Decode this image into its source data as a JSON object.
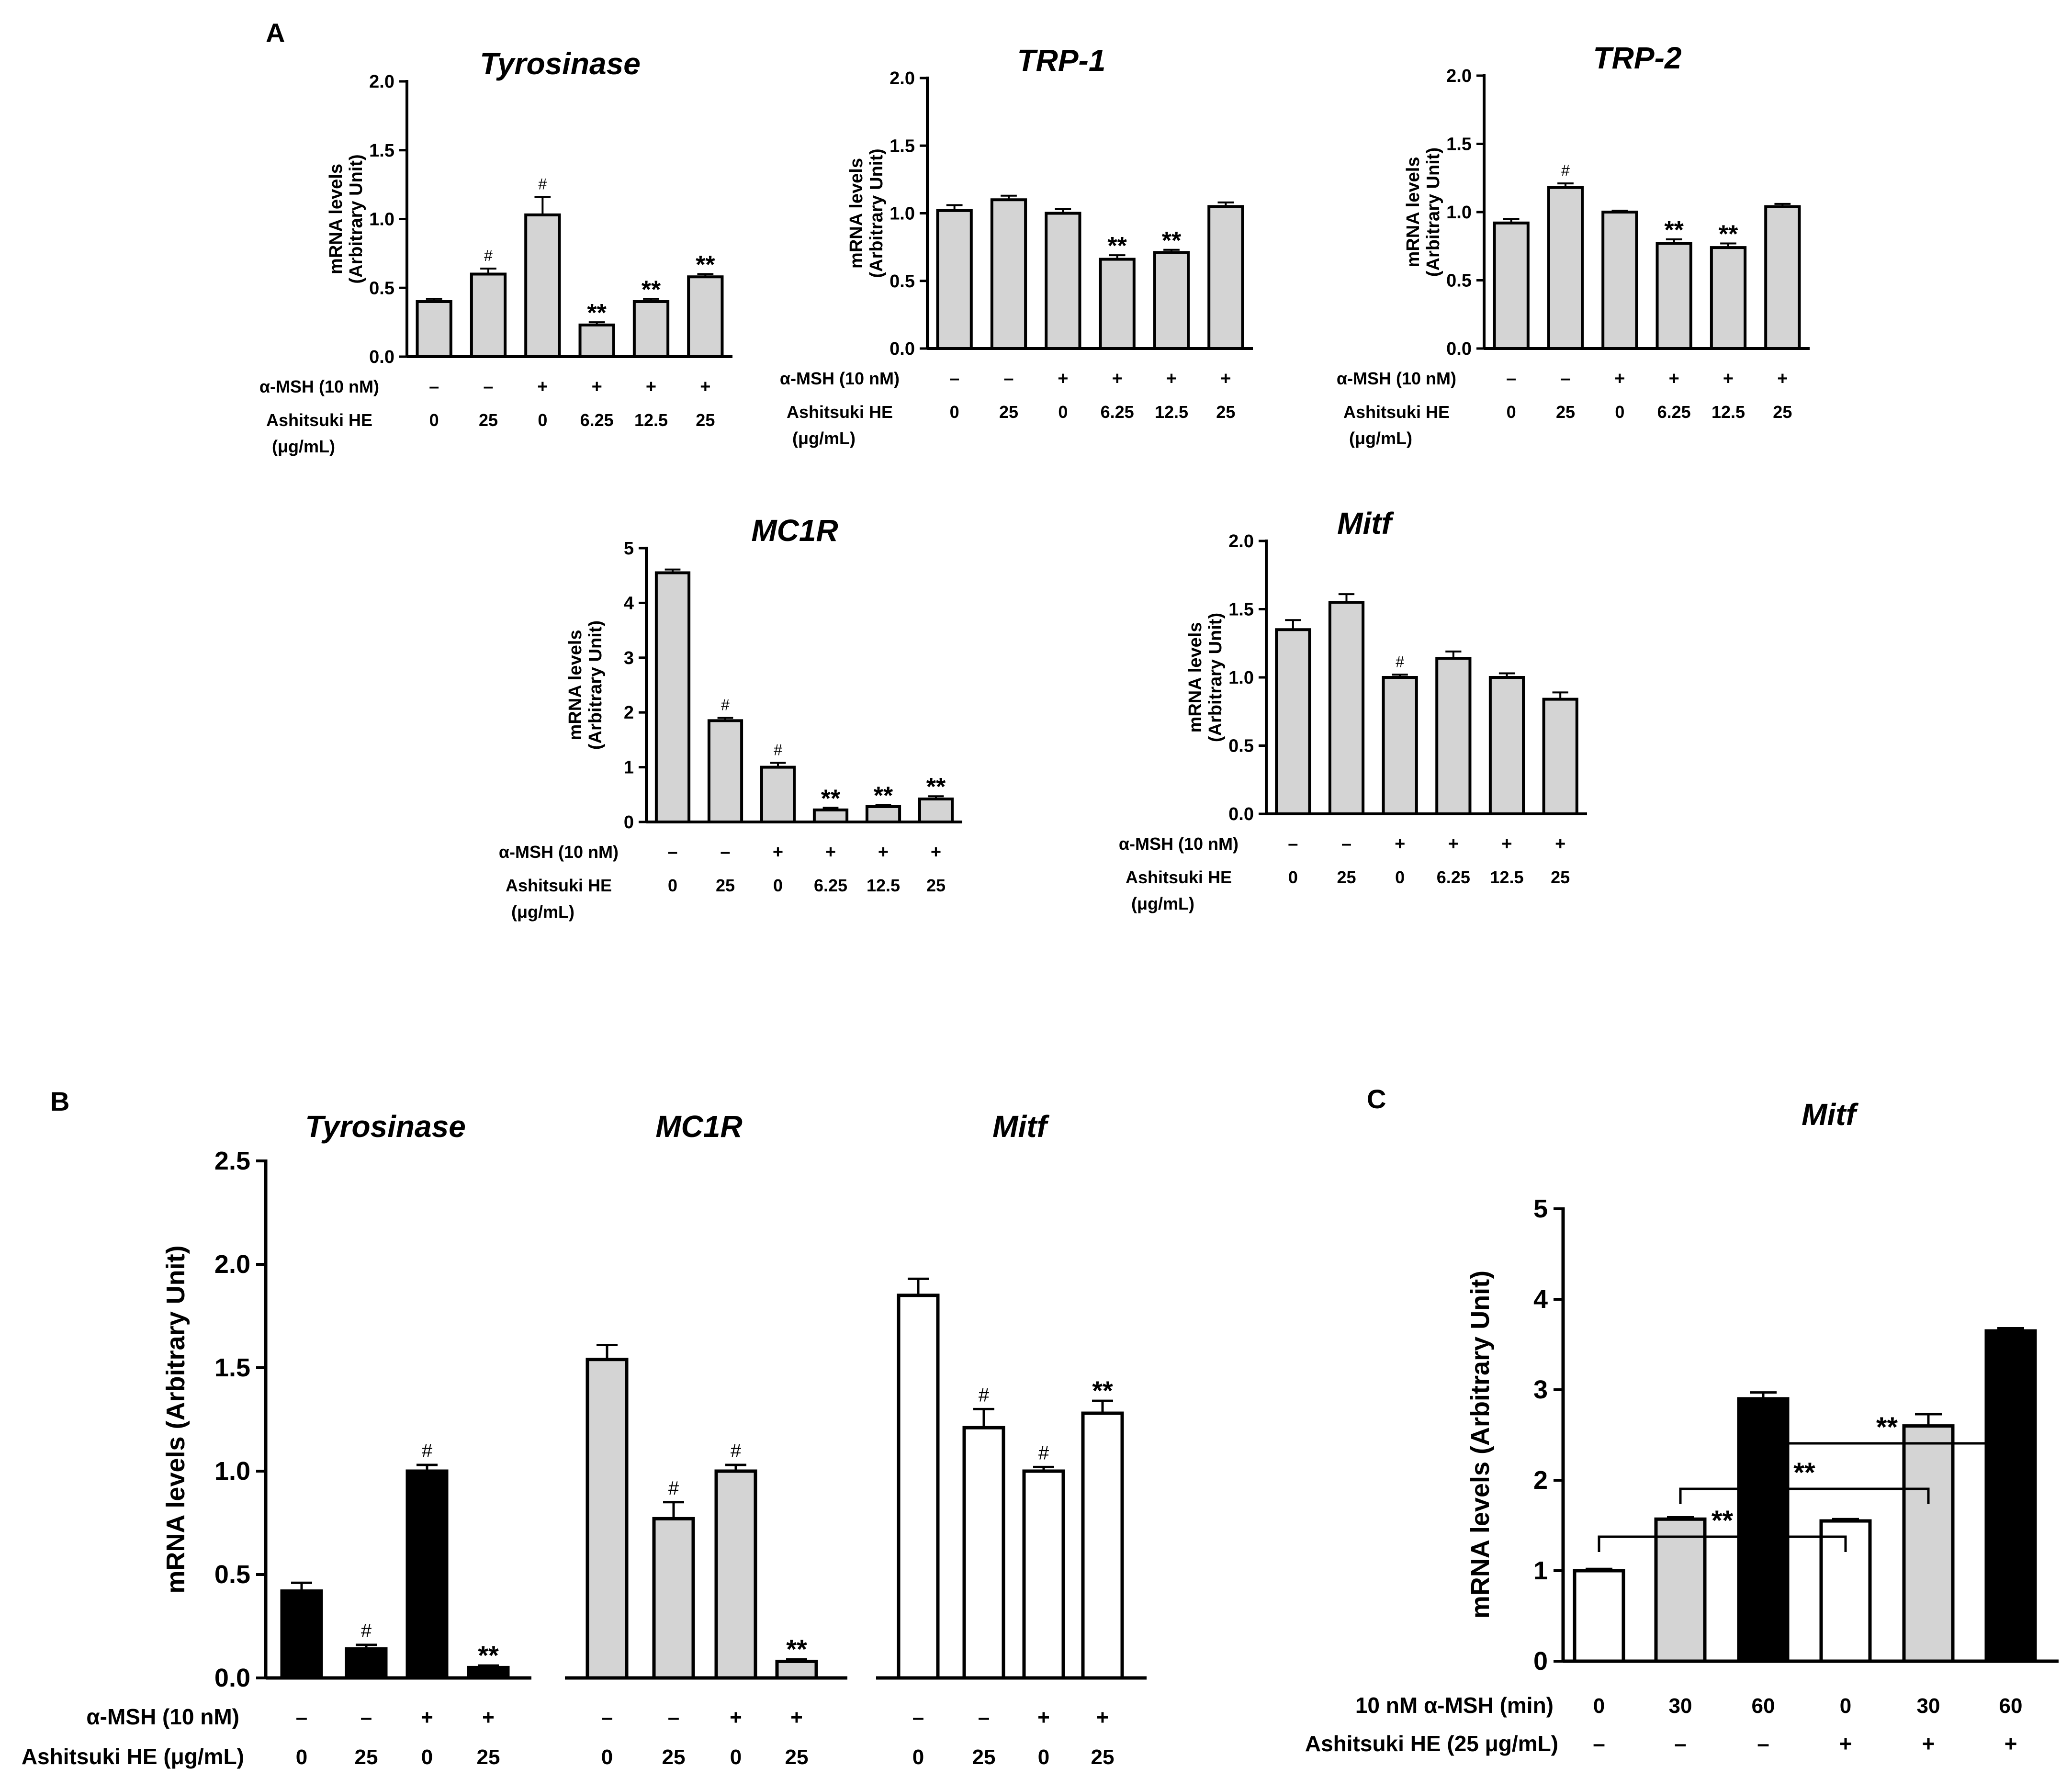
{
  "panel_labels": {
    "A": "A",
    "B": "B",
    "C": "C"
  },
  "colors": {
    "bar_gray": "#d4d4d4",
    "bar_black": "#000000",
    "bar_white": "#ffffff",
    "ink": "#000000"
  },
  "chart_data": [
    {
      "type": "bar",
      "panel": "A",
      "title": "Tyrosinase",
      "ylabel_lines": [
        "mRNA levels",
        "(Arbitrary Unit)"
      ],
      "ylim": [
        0,
        2.0
      ],
      "yticks": [
        "0.0",
        "0.5",
        "1.0",
        "1.5",
        "2.0"
      ],
      "values": [
        0.4,
        0.6,
        1.03,
        0.23,
        0.4,
        0.58
      ],
      "errors": [
        0.02,
        0.04,
        0.13,
        0.02,
        0.02,
        0.02
      ],
      "annotations": [
        "",
        "#",
        "#",
        "**",
        "**",
        "**"
      ],
      "row_labels": [
        {
          "label": "α-MSH (10 nM)",
          "values": [
            "–",
            "–",
            "+",
            "+",
            "+",
            "+"
          ]
        },
        {
          "label": "Ashitsuki HE",
          "sublabel": "(μg/mL)",
          "values": [
            "0",
            "25",
            "0",
            "6.25",
            "12.5",
            "25"
          ]
        }
      ]
    },
    {
      "type": "bar",
      "panel": "A",
      "title": "TRP-1",
      "ylabel_lines": [
        "mRNA levels",
        "(Arbitrary Unit)"
      ],
      "ylim": [
        0,
        2.0
      ],
      "yticks": [
        "0.0",
        "0.5",
        "1.0",
        "1.5",
        "2.0"
      ],
      "values": [
        1.02,
        1.1,
        1.0,
        0.66,
        0.71,
        1.05
      ],
      "errors": [
        0.04,
        0.03,
        0.03,
        0.03,
        0.02,
        0.03
      ],
      "annotations": [
        "",
        "",
        "",
        "**",
        "**",
        ""
      ],
      "row_labels": [
        {
          "label": "α-MSH (10 nM)",
          "values": [
            "–",
            "–",
            "+",
            "+",
            "+",
            "+"
          ]
        },
        {
          "label": "Ashitsuki HE",
          "sublabel": "(μg/mL)",
          "values": [
            "0",
            "25",
            "0",
            "6.25",
            "12.5",
            "25"
          ]
        }
      ]
    },
    {
      "type": "bar",
      "panel": "A",
      "title": "TRP-2",
      "ylabel_lines": [
        "mRNA levels",
        "(Arbitrary Unit)"
      ],
      "ylim": [
        0,
        2.0
      ],
      "yticks": [
        "0.0",
        "0.5",
        "1.0",
        "1.5",
        "2.0"
      ],
      "values": [
        0.92,
        1.18,
        1.0,
        0.77,
        0.74,
        1.04
      ],
      "errors": [
        0.03,
        0.03,
        0.01,
        0.03,
        0.03,
        0.02
      ],
      "annotations": [
        "",
        "#",
        "",
        "**",
        "**",
        ""
      ],
      "row_labels": [
        {
          "label": "α-MSH (10 nM)",
          "values": [
            "–",
            "–",
            "+",
            "+",
            "+",
            "+"
          ]
        },
        {
          "label": "Ashitsuki HE",
          "sublabel": "(μg/mL)",
          "values": [
            "0",
            "25",
            "0",
            "6.25",
            "12.5",
            "25"
          ]
        }
      ]
    },
    {
      "type": "bar",
      "panel": "A",
      "title": "MC1R",
      "ylabel_lines": [
        "mRNA levels",
        "(Arbitrary Unit)"
      ],
      "ylim": [
        0,
        5
      ],
      "yticks": [
        "0",
        "1",
        "2",
        "3",
        "4",
        "5"
      ],
      "values": [
        4.55,
        1.85,
        1.0,
        0.22,
        0.28,
        0.42
      ],
      "errors": [
        0.06,
        0.05,
        0.08,
        0.04,
        0.03,
        0.05
      ],
      "annotations": [
        "",
        "#",
        "#",
        "**",
        "**",
        "**"
      ],
      "row_labels": [
        {
          "label": "α-MSH (10 nM)",
          "values": [
            "–",
            "–",
            "+",
            "+",
            "+",
            "+"
          ]
        },
        {
          "label": "Ashitsuki HE",
          "sublabel": "(μg/mL)",
          "values": [
            "0",
            "25",
            "0",
            "6.25",
            "12.5",
            "25"
          ]
        }
      ]
    },
    {
      "type": "bar",
      "panel": "A",
      "title": "Mitf",
      "ylabel_lines": [
        "mRNA levels",
        "(Arbitrary Unit)"
      ],
      "ylim": [
        0,
        2.0
      ],
      "yticks": [
        "0.0",
        "0.5",
        "1.0",
        "1.5",
        "2.0"
      ],
      "values": [
        1.35,
        1.55,
        1.0,
        1.14,
        1.0,
        0.84
      ],
      "errors": [
        0.07,
        0.06,
        0.02,
        0.05,
        0.03,
        0.05
      ],
      "annotations": [
        "",
        "",
        "#",
        "",
        "",
        ""
      ],
      "row_labels": [
        {
          "label": "α-MSH (10 nM)",
          "values": [
            "–",
            "–",
            "+",
            "+",
            "+",
            "+"
          ]
        },
        {
          "label": "Ashitsuki HE",
          "sublabel": "(μg/mL)",
          "values": [
            "0",
            "25",
            "0",
            "6.25",
            "12.5",
            "25"
          ]
        }
      ]
    },
    {
      "type": "bar",
      "panel": "B",
      "ylabel": "mRNA levels (Arbitrary Unit)",
      "ylim": [
        0,
        2.5
      ],
      "yticks": [
        "0.0",
        "0.5",
        "1.0",
        "1.5",
        "2.0",
        "2.5"
      ],
      "groups": [
        {
          "name": "Tyrosinase",
          "fill": "black",
          "values": [
            0.42,
            0.14,
            1.0,
            0.05
          ],
          "errors": [
            0.04,
            0.02,
            0.03,
            0.01
          ],
          "annotations": [
            "",
            "#",
            "#",
            "**"
          ]
        },
        {
          "name": "MC1R",
          "fill": "gray",
          "values": [
            1.54,
            0.77,
            1.0,
            0.08
          ],
          "errors": [
            0.07,
            0.08,
            0.03,
            0.01
          ],
          "annotations": [
            "",
            "#",
            "#",
            "**"
          ]
        },
        {
          "name": "Mitf",
          "fill": "white",
          "values": [
            1.85,
            1.21,
            1.0,
            1.28
          ],
          "errors": [
            0.08,
            0.09,
            0.02,
            0.06
          ],
          "annotations": [
            "",
            "#",
            "#",
            "**"
          ]
        }
      ],
      "row_labels": [
        {
          "label": "α-MSH (10 nM)",
          "values": [
            "–",
            "–",
            "+",
            "+"
          ]
        },
        {
          "label": "Ashitsuki HE (μg/mL)",
          "values": [
            "0",
            "25",
            "0",
            "25"
          ]
        }
      ]
    },
    {
      "type": "bar",
      "panel": "C",
      "title": "Mitf",
      "ylabel": "mRNA levels (Arbitrary Unit)",
      "ylim": [
        0,
        5
      ],
      "yticks": [
        "0",
        "1",
        "2",
        "3",
        "4",
        "5"
      ],
      "values": [
        1.0,
        1.57,
        2.9,
        1.55,
        2.6,
        3.65
      ],
      "errors": [
        0.02,
        0.02,
        0.07,
        0.02,
        0.13,
        0.03
      ],
      "fills": [
        "white",
        "gray",
        "black",
        "white",
        "gray",
        "black"
      ],
      "significance": [
        {
          "from": 0,
          "to": 3,
          "label": "**"
        },
        {
          "from": 1,
          "to": 4,
          "label": "**"
        },
        {
          "from": 2,
          "to": 5,
          "label": "**"
        }
      ],
      "row_labels": [
        {
          "label": "10 nM α-MSH (min)",
          "values": [
            "0",
            "30",
            "60",
            "0",
            "30",
            "60"
          ]
        },
        {
          "label": "Ashitsuki HE (25 μg/mL)",
          "values": [
            "–",
            "–",
            "–",
            "+",
            "+",
            "+"
          ]
        }
      ]
    }
  ]
}
